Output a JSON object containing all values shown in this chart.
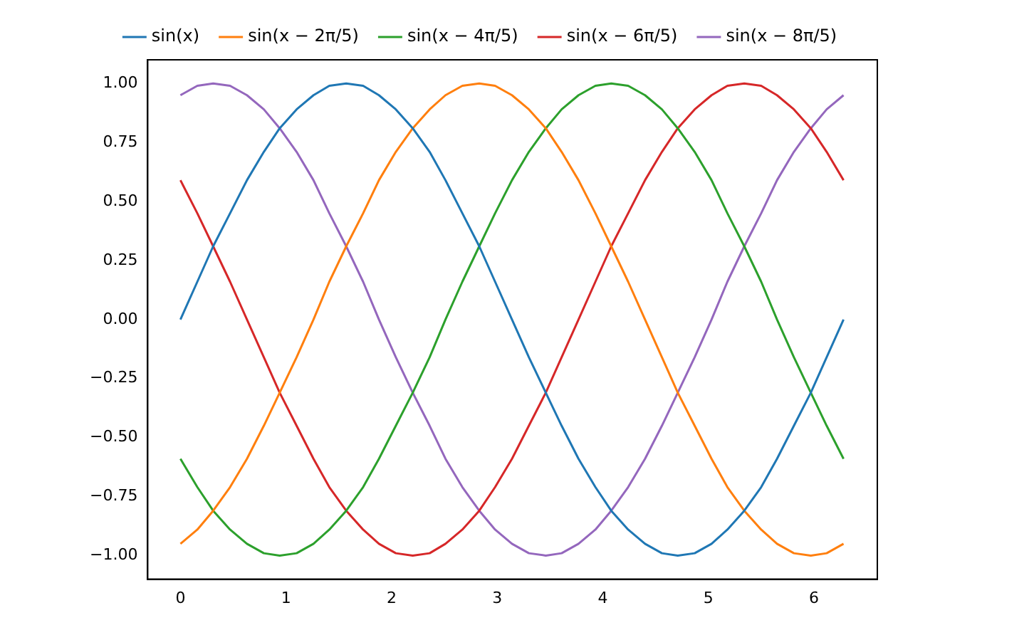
{
  "chart_data": {
    "type": "line",
    "legend": "top",
    "marker": "none",
    "line_style": "solid",
    "grid": false,
    "x": [
      0,
      0.16,
      0.31,
      0.47,
      0.63,
      0.79,
      0.94,
      1.1,
      1.26,
      1.41,
      1.57,
      1.73,
      1.88,
      2.04,
      2.2,
      2.36,
      2.51,
      2.67,
      2.83,
      2.98,
      3.14,
      3.3,
      3.46,
      3.61,
      3.77,
      3.93,
      4.08,
      4.24,
      4.4,
      4.56,
      4.71,
      4.87,
      5.03,
      5.18,
      5.34,
      5.5,
      5.65,
      5.81,
      5.97,
      6.12,
      6.28
    ],
    "xlim": [
      -0.31,
      6.6
    ],
    "xticks": [
      0,
      1,
      2,
      3,
      4,
      5,
      6
    ],
    "ylim": [
      -1.1,
      1.1
    ],
    "yticks": [
      {
        "value": -1,
        "label": "−1.00"
      },
      {
        "value": -0.75,
        "label": "−0.75"
      },
      {
        "value": -0.5,
        "label": "−0.50"
      },
      {
        "value": -0.25,
        "label": "−0.25"
      },
      {
        "value": 0,
        "label": "0.00"
      },
      {
        "value": 0.25,
        "label": "0.25"
      },
      {
        "value": 0.5,
        "label": "0.50"
      },
      {
        "value": 0.75,
        "label": "0.75"
      },
      {
        "value": 1,
        "label": "1.00"
      }
    ],
    "series": [
      {
        "name": "sin(x)",
        "color": "#1f77b4",
        "values": [
          0,
          0.16,
          0.31,
          0.45,
          0.59,
          0.71,
          0.81,
          0.89,
          0.95,
          0.99,
          1,
          0.99,
          0.95,
          0.89,
          0.81,
          0.71,
          0.59,
          0.45,
          0.31,
          0.16,
          0,
          -0.16,
          -0.31,
          -0.45,
          -0.59,
          -0.71,
          -0.81,
          -0.89,
          -0.95,
          -0.99,
          -1,
          -0.99,
          -0.95,
          -0.89,
          -0.81,
          -0.71,
          -0.59,
          -0.45,
          -0.31,
          -0.16,
          0
        ]
      },
      {
        "name": "sin(x − 2π/5)",
        "color": "#ff7f0e",
        "values": [
          -0.95,
          -0.89,
          -0.81,
          -0.71,
          -0.59,
          -0.45,
          -0.31,
          -0.16,
          0,
          0.16,
          0.31,
          0.45,
          0.59,
          0.71,
          0.81,
          0.89,
          0.95,
          0.99,
          1,
          0.99,
          0.95,
          0.89,
          0.81,
          0.71,
          0.59,
          0.45,
          0.31,
          0.16,
          0,
          -0.16,
          -0.31,
          -0.45,
          -0.59,
          -0.71,
          -0.81,
          -0.89,
          -0.95,
          -0.99,
          -1,
          -0.99,
          -0.95
        ]
      },
      {
        "name": "sin(x − 4π/5)",
        "color": "#2ca02c",
        "values": [
          -0.59,
          -0.71,
          -0.81,
          -0.89,
          -0.95,
          -0.99,
          -1,
          -0.99,
          -0.95,
          -0.89,
          -0.81,
          -0.71,
          -0.59,
          -0.45,
          -0.31,
          -0.16,
          0,
          0.16,
          0.31,
          0.45,
          0.59,
          0.71,
          0.81,
          0.89,
          0.95,
          0.99,
          1,
          0.99,
          0.95,
          0.89,
          0.81,
          0.71,
          0.59,
          0.45,
          0.31,
          0.16,
          0,
          -0.16,
          -0.31,
          -0.45,
          -0.59
        ]
      },
      {
        "name": "sin(x − 6π/5)",
        "color": "#d62728",
        "values": [
          0.59,
          0.45,
          0.31,
          0.16,
          0,
          -0.16,
          -0.31,
          -0.45,
          -0.59,
          -0.71,
          -0.81,
          -0.89,
          -0.95,
          -0.99,
          -1,
          -0.99,
          -0.95,
          -0.89,
          -0.81,
          -0.71,
          -0.59,
          -0.45,
          -0.31,
          -0.16,
          0,
          0.16,
          0.31,
          0.45,
          0.59,
          0.71,
          0.81,
          0.89,
          0.95,
          0.99,
          1,
          0.99,
          0.95,
          0.89,
          0.81,
          0.71,
          0.59
        ]
      },
      {
        "name": "sin(x − 8π/5)",
        "color": "#9467bd",
        "values": [
          0.95,
          0.99,
          1,
          0.99,
          0.95,
          0.89,
          0.81,
          0.71,
          0.59,
          0.45,
          0.31,
          0.16,
          0,
          -0.16,
          -0.31,
          -0.45,
          -0.59,
          -0.71,
          -0.81,
          -0.89,
          -0.95,
          -0.99,
          -1,
          -0.99,
          -0.95,
          -0.89,
          -0.81,
          -0.71,
          -0.59,
          -0.45,
          -0.31,
          -0.16,
          0,
          0.16,
          0.31,
          0.45,
          0.59,
          0.71,
          0.81,
          0.89,
          0.95
        ]
      }
    ]
  }
}
